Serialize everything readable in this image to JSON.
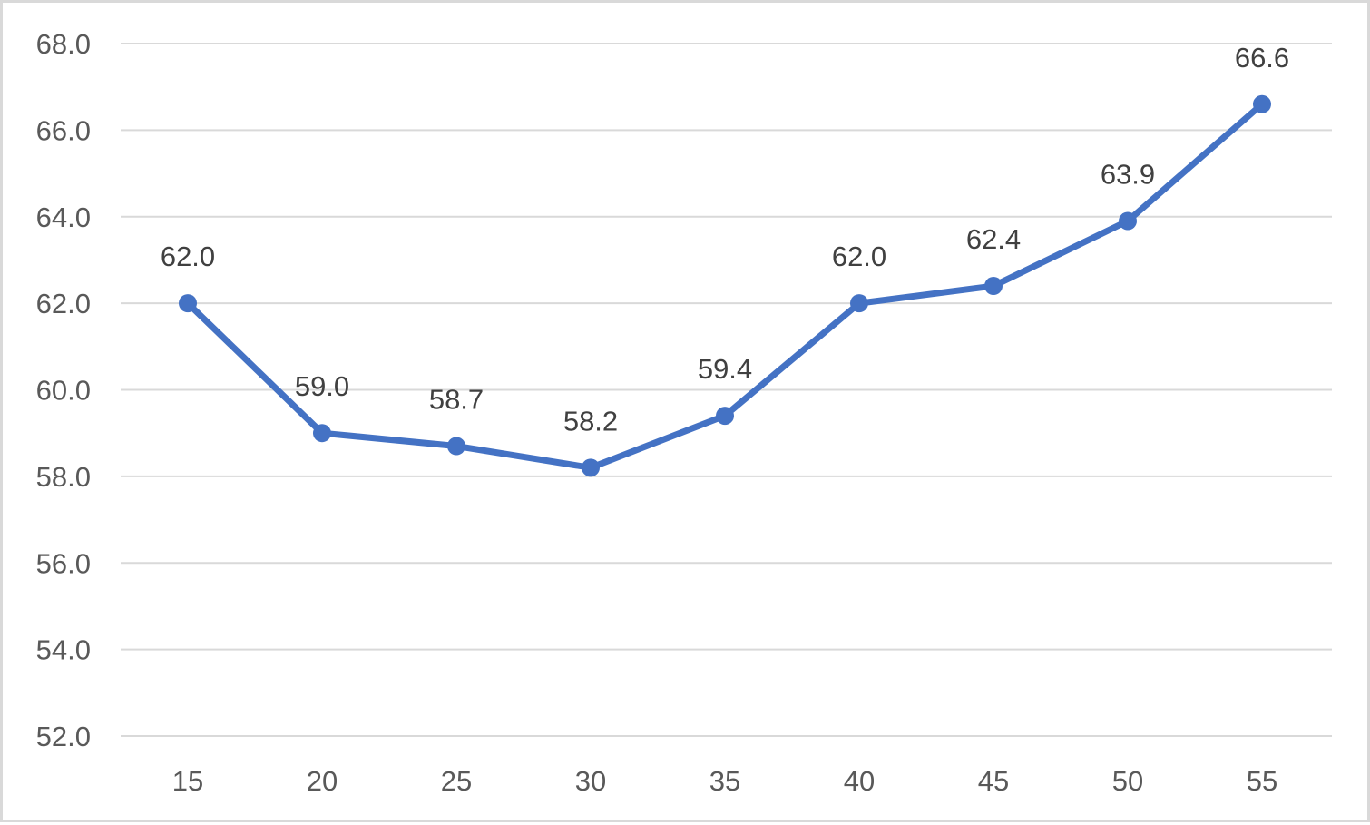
{
  "chart_data": {
    "type": "line",
    "title": "",
    "xlabel": "",
    "ylabel": "",
    "categories": [
      "15",
      "20",
      "25",
      "30",
      "35",
      "40",
      "45",
      "50",
      "55"
    ],
    "series": [
      {
        "values": [
          62.0,
          59.0,
          58.7,
          58.2,
          59.4,
          62.0,
          62.4,
          63.9,
          66.6
        ],
        "data_labels": [
          "62.0",
          "59.0",
          "58.7",
          "58.2",
          "59.4",
          "62.0",
          "62.4",
          "63.9",
          "66.6"
        ],
        "color": "#4472c4"
      }
    ],
    "ylim": [
      52.0,
      68.0
    ],
    "y_ticks": [
      52.0,
      54.0,
      56.0,
      58.0,
      60.0,
      62.0,
      64.0,
      66.0,
      68.0
    ],
    "y_tick_labels": [
      "52.0",
      "54.0",
      "56.0",
      "58.0",
      "60.0",
      "62.0",
      "64.0",
      "66.0",
      "68.0"
    ],
    "grid": true,
    "legend": "none",
    "gridline_color": "#d9d9d9"
  }
}
